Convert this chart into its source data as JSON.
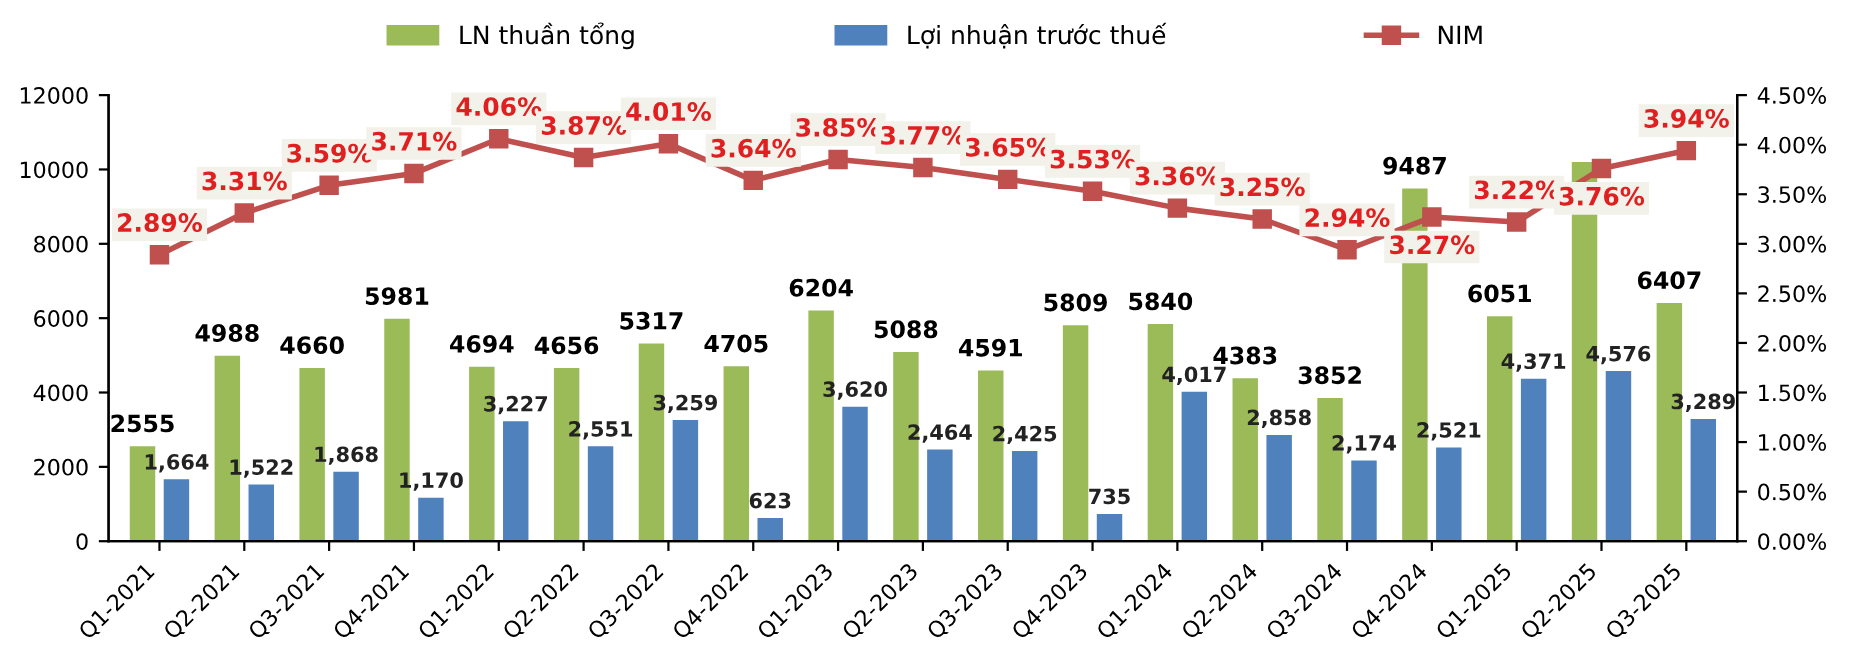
{
  "chart_data": {
    "type": "bar",
    "categories": [
      "Q1-2021",
      "Q2-2021",
      "Q3-2021",
      "Q4-2021",
      "Q1-2022",
      "Q2-2022",
      "Q3-2022",
      "Q4-2022",
      "Q1-2023",
      "Q2-2023",
      "Q3-2023",
      "Q4-2023",
      "Q1-2024",
      "Q2-2024",
      "Q3-2024",
      "Q4-2024",
      "Q1-2025",
      "Q2-2025",
      "Q3-2025"
    ],
    "series": [
      {
        "name": "LN thuần tổng",
        "color": "#9bbb59",
        "values": [
          2555,
          4988,
          4660,
          5981,
          4694,
          4656,
          5317,
          4705,
          6204,
          5088,
          4591,
          5809,
          5840,
          4383,
          3852,
          9487,
          6051,
          10200,
          6407
        ],
        "value_labels": [
          "2555",
          "4988",
          "4660",
          "5981",
          "4694",
          "4656",
          "5317",
          "4705",
          "6204",
          "5088",
          "4591",
          "5809",
          "5840",
          "4383",
          "3852",
          "9487",
          "6051",
          null,
          "6407"
        ]
      },
      {
        "name": "Lợi nhuận trước thuế",
        "color": "#4f81bd",
        "values": [
          1664,
          1522,
          1868,
          1170,
          3227,
          2551,
          3259,
          623,
          3620,
          2464,
          2425,
          735,
          4017,
          2858,
          2174,
          2521,
          4371,
          4576,
          3289
        ],
        "value_labels": [
          "1,664",
          "1,522",
          "1,868",
          "1,170",
          "3,227",
          "2,551",
          "3,259",
          "623",
          "3,620",
          "2,464",
          "2,425",
          "735",
          "4,017",
          "2,858",
          "2,174",
          "2,521",
          "4,371",
          "4,576",
          "3,289"
        ]
      },
      {
        "name": "NIM",
        "type": "line",
        "axis": "y2",
        "color": "#c0504d",
        "marker": "square",
        "values": [
          2.89,
          3.31,
          3.59,
          3.71,
          4.06,
          3.87,
          4.01,
          3.64,
          3.85,
          3.77,
          3.65,
          3.53,
          3.36,
          3.25,
          2.94,
          3.27,
          3.22,
          3.76,
          3.94
        ],
        "value_labels": [
          "2.89%",
          "3.31%",
          "3.59%",
          "3.71%",
          "4.06%",
          "3.87%",
          "4.01%",
          "3.64%",
          "3.85%",
          "3.77%",
          "3.65%",
          "3.53%",
          "3.36%",
          "3.25%",
          "2.94%",
          "3.27%",
          "3.22%",
          "3.76%",
          "3.94%"
        ]
      }
    ],
    "ylim": [
      0,
      12000
    ],
    "yticks": [
      0,
      2000,
      4000,
      6000,
      8000,
      10000,
      12000
    ],
    "y2lim": [
      0,
      4.5
    ],
    "y2ticks": [
      {
        "value": 0,
        "label": "0.00%"
      },
      {
        "value": 0.5,
        "label": "0.50%"
      },
      {
        "value": 1,
        "label": "1.00%"
      },
      {
        "value": 1.5,
        "label": "1.50%"
      },
      {
        "value": 2,
        "label": "2.00%"
      },
      {
        "value": 2.5,
        "label": "2.50%"
      },
      {
        "value": 3,
        "label": "3.00%"
      },
      {
        "value": 3.5,
        "label": "3.50%"
      },
      {
        "value": 4,
        "label": "4.00%"
      },
      {
        "value": 4.5,
        "label": "4.50%"
      }
    ],
    "grid": false,
    "legend": "top"
  }
}
